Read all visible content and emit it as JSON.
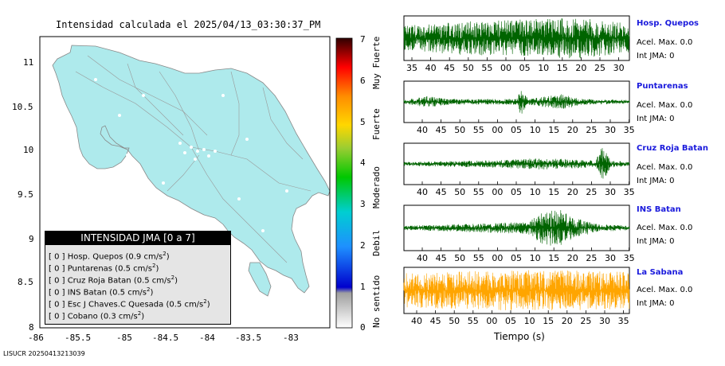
{
  "title": "Intensidad calculada el 2025/04/13_03:30:37_PM",
  "footer": "LISUCR 20250413213039",
  "map": {
    "lon_ticks": [
      "-86",
      "-85.5",
      "-85",
      "-84.5",
      "-84",
      "-83.5",
      "-83"
    ],
    "lat_ticks": [
      "8",
      "8.5",
      "9",
      "9.5",
      "10",
      "10.5",
      "11"
    ],
    "land_color": "#aeeaec"
  },
  "colorbar": {
    "ticks": [
      "0",
      "1",
      "2",
      "3",
      "4",
      "5",
      "6",
      "7"
    ],
    "labels": [
      "No sentido",
      "Debil",
      "Moderado",
      "Fuerte",
      "Muy Fuerte"
    ]
  },
  "legend": {
    "title": "INTENSIDAD JMA [0 a 7]",
    "rows": [
      {
        "text": "[ 0 ]  Hosp. Quepos (0.9 cm/s",
        "sup": "2",
        "close": ")"
      },
      {
        "text": "[ 0 ]  Puntarenas (0.5 cm/s",
        "sup": "2",
        "close": ")"
      },
      {
        "text": "[ 0 ]  Cruz Roja Batan (0.5 cm/s",
        "sup": "2",
        "close": ")"
      },
      {
        "text": "[ 0 ]  INS Batan (0.5 cm/s",
        "sup": "2",
        "close": ")"
      },
      {
        "text": "[ 0 ]  Esc J Chaves.C Quesada (0.5 cm/s",
        "sup": "2",
        "close": ")"
      },
      {
        "text": "[ 0 ]  Cobano (0.3 cm/s",
        "sup": "2",
        "close": ")"
      }
    ]
  },
  "stations": [
    {
      "name": "Hosp. Quepos",
      "accel": "Acel. Max. 0.0",
      "jma": "Int JMA: 0",
      "color": "#006400",
      "ticks": [
        "35",
        "40",
        "45",
        "50",
        "55",
        "00",
        "05",
        "10",
        "15",
        "20",
        "25",
        "30"
      ]
    },
    {
      "name": "Puntarenas",
      "accel": "Acel. Max. 0.0",
      "jma": "Int JMA: 0",
      "color": "#006400",
      "ticks": [
        "40",
        "45",
        "50",
        "55",
        "00",
        "05",
        "10",
        "15",
        "20",
        "25",
        "30",
        "35"
      ]
    },
    {
      "name": "Cruz Roja Batan",
      "accel": "Acel. Max. 0.0",
      "jma": "Int JMA: 0",
      "color": "#006400",
      "ticks": [
        "40",
        "45",
        "50",
        "55",
        "00",
        "05",
        "10",
        "15",
        "20",
        "25",
        "30",
        "35"
      ]
    },
    {
      "name": "INS Batan",
      "accel": "Acel. Max. 0.0",
      "jma": "Int JMA: 0",
      "color": "#006400",
      "ticks": [
        "40",
        "45",
        "50",
        "55",
        "00",
        "05",
        "10",
        "15",
        "20",
        "25",
        "30",
        "35"
      ]
    },
    {
      "name": "La Sabana",
      "accel": "Acel. Max. 0.0",
      "jma": "Int JMA: 0",
      "color": "#ffa500",
      "ticks": [
        "40",
        "45",
        "50",
        "55",
        "00",
        "05",
        "10",
        "15",
        "20",
        "25",
        "30",
        "35"
      ]
    }
  ],
  "xlabel": "Tiempo (s)",
  "chart_data": {
    "type": "line",
    "title": "Intensidad calculada el 2025/04/13_03:30:37_PM",
    "xlabel": "Tiempo (s)",
    "series": [
      {
        "name": "Hosp. Quepos",
        "accel_max": 0.0,
        "jma": 0
      },
      {
        "name": "Puntarenas",
        "accel_max": 0.0,
        "jma": 0
      },
      {
        "name": "Cruz Roja Batan",
        "accel_max": 0.0,
        "jma": 0
      },
      {
        "name": "INS Batan",
        "accel_max": 0.0,
        "jma": 0
      },
      {
        "name": "La Sabana",
        "accel_max": 0.0,
        "jma": 0
      }
    ]
  }
}
